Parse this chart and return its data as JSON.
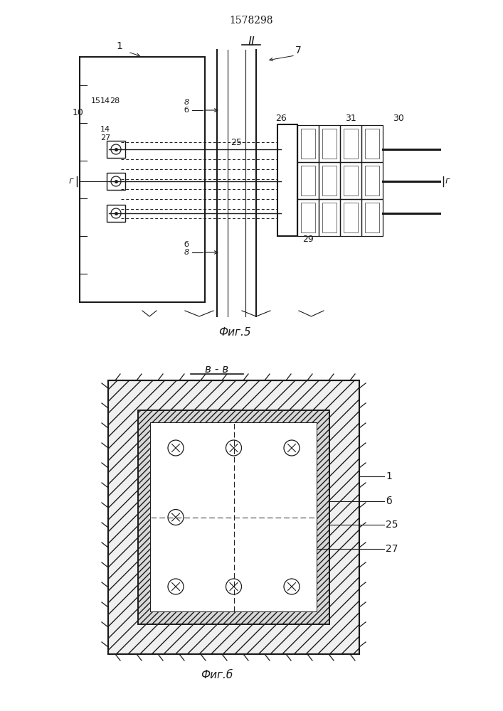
{
  "patent_number": "1578298",
  "fig5_label": "Фиг.5",
  "fig6_label": "Фиг.б",
  "section_II": "II",
  "section_BB": "в - в",
  "bg_color": "#ffffff",
  "line_color": "#1a1a1a"
}
